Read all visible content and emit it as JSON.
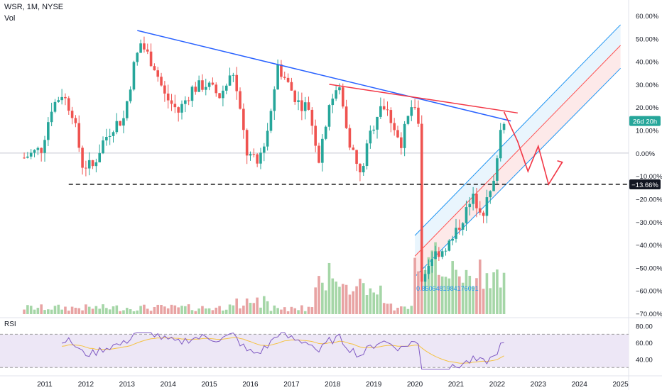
{
  "header": {
    "ticker": "WSR, 1M, NYSE",
    "volume_label": "Vol"
  },
  "rsi_label": "RSI",
  "colors": {
    "up": "#26a69a",
    "down": "#ef5350",
    "up_vol": "#a5d6a7",
    "down_vol": "#e8a3a3",
    "trendline_blue": "#2962ff",
    "trendline_red": "#f23645",
    "channel_blue": "#2196f3",
    "channel_red": "#ff5252",
    "rsi_line": "#7e57c2",
    "rsi_ma": "#f5c242",
    "rsi_bg": "#ede7f6",
    "badge_bg": "#26a69a",
    "level_badge_bg": "#131722"
  },
  "chart_data": {
    "type": "candlestick",
    "y_axis": {
      "unit": "%",
      "ticks": [
        "60.00%",
        "50.00%",
        "40.00%",
        "30.00%",
        "20.00%",
        "10.00%",
        "0.00%",
        "−10.00%",
        "−20.00%",
        "−30.00%",
        "−40.00%",
        "−50.00%",
        "−60.00%",
        "−70.00%"
      ],
      "range": [
        -70,
        60
      ]
    },
    "x_axis": {
      "ticks": [
        "2011",
        "2012",
        "2013",
        "2014",
        "2015",
        "2016",
        "2017",
        "2018",
        "2019",
        "2020",
        "2021",
        "2022",
        "2023",
        "2024",
        "2025"
      ]
    },
    "price_badge": "26d 20h",
    "horizontal_level": {
      "value": -13.66,
      "label": "−13.66%"
    },
    "channel_note": "0.8506481984176091",
    "trendline_blue": {
      "from": [
        "2013-04",
        53.5
      ],
      "to": [
        "2022-05",
        14
      ]
    },
    "trendline_red": {
      "from": [
        "2017-12",
        30
      ],
      "to": [
        "2022-07",
        17.5
      ]
    },
    "zigzag_projection": [
      [
        "2022-03",
        18
      ],
      [
        "2022-07",
        5
      ],
      [
        "2022-10",
        -8
      ],
      [
        "2023-01",
        3
      ],
      [
        "2023-04",
        -13.66
      ],
      [
        "2023-08",
        -4
      ]
    ],
    "regression_channel": {
      "start": [
        "2020-01",
        [
          -36,
          -45,
          -54
        ]
      ],
      "end": [
        "2025-01",
        [
          56,
          47,
          37
        ]
      ]
    },
    "rsi": {
      "y_ticks": [
        "80.00",
        "60.00",
        "40.00"
      ],
      "upper": 70,
      "lower": 30
    }
  }
}
